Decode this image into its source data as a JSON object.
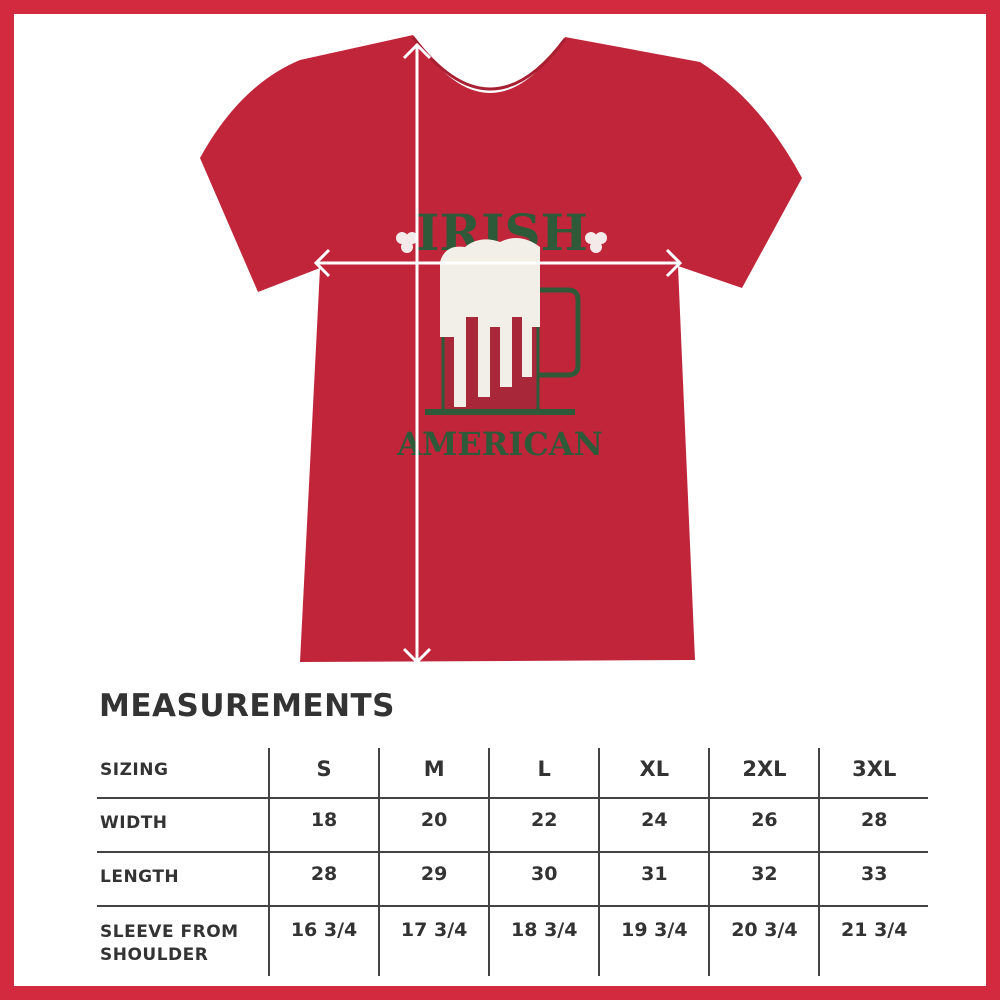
{
  "colors": {
    "border": "#d32a3f",
    "shirt": "#c0253a",
    "print_green": "#2f5a3a",
    "text": "#333333"
  },
  "shirt_print": {
    "top_text": "IRISH",
    "bottom_text": "AMERICAN"
  },
  "measurements": {
    "title": "MEASUREMENTS",
    "header": {
      "label": "SIZING",
      "sizes": [
        "S",
        "M",
        "L",
        "XL",
        "2XL",
        "3XL"
      ]
    },
    "rows": [
      {
        "label": "WIDTH",
        "values": [
          "18",
          "20",
          "22",
          "24",
          "26",
          "28"
        ]
      },
      {
        "label": "LENGTH",
        "values": [
          "28",
          "29",
          "30",
          "31",
          "32",
          "33"
        ]
      },
      {
        "label_line1": "SLEEVE FROM",
        "label_line2": "SHOULDER",
        "values": [
          "16 3/4",
          "17 3/4",
          "18 3/4",
          "19 3/4",
          "20 3/4",
          "21 3/4"
        ]
      }
    ]
  }
}
